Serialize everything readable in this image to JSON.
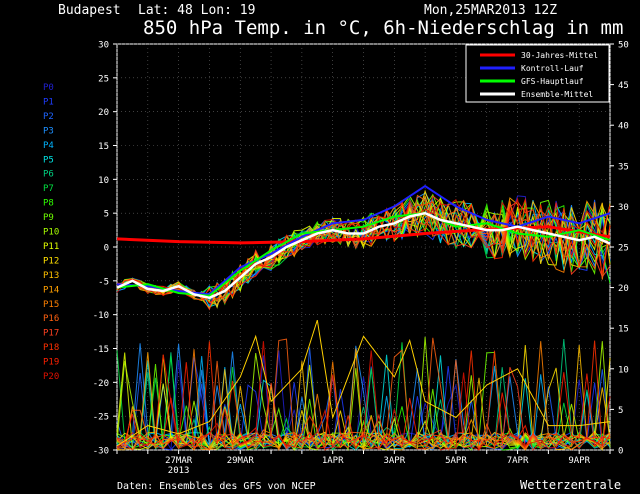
{
  "header": {
    "location": "Budapest",
    "coords": "Lat: 48 Lon: 19",
    "date": "Mon,25MAR2013 12Z",
    "title": "850 hPa Temp. in °C, 6h-Niederschlag in mm"
  },
  "footer": {
    "source": "Daten: Ensembles des GFS von NCEP",
    "brand": "Wetterzentrale"
  },
  "colors": {
    "climate_mean": "#ff0000",
    "control": "#2020ff",
    "gfs": "#00ff00",
    "ensemble_mean": "#ffffff",
    "members": [
      "#2020d0",
      "#1e3cff",
      "#1e64ff",
      "#1e90ff",
      "#00b4ff",
      "#00e0e0",
      "#00d080",
      "#00e040",
      "#30ff00",
      "#70ff00",
      "#a8ff00",
      "#e0ff00",
      "#ffe000",
      "#ffc000",
      "#ffa000",
      "#ff8000",
      "#ff6010",
      "#ff4020",
      "#ff3000",
      "#ff2000",
      "#e01000"
    ]
  },
  "chart_data": {
    "type": "line",
    "x_ticks": [
      "27MAR\n2013",
      "29MAR",
      "1APR",
      "3APR",
      "5APR",
      "7APR",
      "9APR"
    ],
    "x_tick_days": [
      2,
      4,
      7,
      9,
      11,
      13,
      15
    ],
    "x_range_days": [
      0,
      16
    ],
    "ylim_left": [
      -30,
      30
    ],
    "ylim_right": [
      0,
      50
    ],
    "y_ticks_left": [
      30,
      25,
      20,
      15,
      10,
      5,
      0,
      -5,
      -10,
      -15,
      -20,
      -25,
      -30
    ],
    "y_ticks_right": [
      50,
      45,
      40,
      35,
      30,
      25,
      20,
      15,
      10,
      5,
      0
    ],
    "legend": [
      "30-Jahres-Mittel",
      "Kontroll-Lauf",
      "GFS-Hauptlauf",
      "Ensemble-Mittel"
    ],
    "legend_position": "top-right",
    "members": [
      "P0",
      "P1",
      "P2",
      "P3",
      "P4",
      "P5",
      "P6",
      "P7",
      "P8",
      "P9",
      "P10",
      "P11",
      "P12",
      "P13",
      "P14",
      "P15",
      "P16",
      "P17",
      "P18",
      "P19",
      "P20"
    ],
    "series": [
      {
        "name": "30-Jahres-Mittel",
        "values": [
          [
            0,
            1.2
          ],
          [
            2,
            0.8
          ],
          [
            4,
            0.6
          ],
          [
            6,
            0.8
          ],
          [
            8,
            1.2
          ],
          [
            10,
            2.0
          ],
          [
            12,
            2.6
          ],
          [
            14,
            3.0
          ],
          [
            16,
            1.5
          ]
        ]
      },
      {
        "name": "Ensemble-Mittel",
        "values": [
          [
            0,
            -6.0
          ],
          [
            0.5,
            -5.0
          ],
          [
            1.0,
            -6.2
          ],
          [
            1.5,
            -6.5
          ],
          [
            2.0,
            -5.8
          ],
          [
            2.5,
            -7.0
          ],
          [
            3.0,
            -7.5
          ],
          [
            3.5,
            -6.5
          ],
          [
            4.0,
            -4.5
          ],
          [
            4.5,
            -2.5
          ],
          [
            5.0,
            -1.5
          ],
          [
            5.5,
            0.0
          ],
          [
            6.0,
            1.0
          ],
          [
            6.5,
            2.0
          ],
          [
            7.0,
            2.5
          ],
          [
            7.5,
            2.0
          ],
          [
            8.0,
            2.0
          ],
          [
            8.5,
            3.0
          ],
          [
            9.0,
            3.5
          ],
          [
            9.5,
            4.5
          ],
          [
            10.0,
            5.0
          ],
          [
            10.5,
            4.0
          ],
          [
            11.0,
            3.5
          ],
          [
            11.5,
            3.0
          ],
          [
            12.0,
            2.5
          ],
          [
            12.5,
            2.5
          ],
          [
            13.0,
            3.0
          ],
          [
            13.5,
            2.5
          ],
          [
            14.0,
            2.0
          ],
          [
            14.5,
            1.5
          ],
          [
            15.0,
            1.0
          ],
          [
            15.5,
            1.5
          ],
          [
            16.0,
            0.5
          ]
        ]
      },
      {
        "name": "Kontroll-Lauf",
        "values": [
          [
            0,
            -5.5
          ],
          [
            1,
            -5.8
          ],
          [
            2,
            -6.5
          ],
          [
            3,
            -7.0
          ],
          [
            4,
            -3.0
          ],
          [
            5,
            -1.0
          ],
          [
            6,
            1.5
          ],
          [
            7,
            3.5
          ],
          [
            8,
            4.0
          ],
          [
            9,
            6.0
          ],
          [
            10,
            9.0
          ],
          [
            11,
            6.0
          ],
          [
            12,
            4.0
          ],
          [
            13,
            3.0
          ],
          [
            14,
            4.5
          ],
          [
            15,
            3.5
          ],
          [
            16,
            5.0
          ]
        ]
      },
      {
        "name": "GFS-Hauptlauf",
        "values": [
          [
            0,
            -6.0
          ],
          [
            1,
            -5.5
          ],
          [
            2,
            -6.8
          ],
          [
            3,
            -7.2
          ],
          [
            4,
            -3.5
          ],
          [
            5,
            -0.5
          ],
          [
            6,
            2.0
          ],
          [
            7,
            2.5
          ],
          [
            8,
            3.0
          ],
          [
            9,
            4.5
          ],
          [
            10,
            5.0
          ],
          [
            11,
            3.0
          ],
          [
            12,
            3.5
          ],
          [
            13,
            2.0
          ],
          [
            14,
            1.5
          ],
          [
            15,
            2.5
          ],
          [
            16,
            1.0
          ]
        ]
      },
      {
        "name": "precipitation_max",
        "axis": "right",
        "values": [
          [
            0,
            0.5
          ],
          [
            1,
            3.0
          ],
          [
            2,
            2.0
          ],
          [
            3,
            3.5
          ],
          [
            4,
            9.0
          ],
          [
            4.5,
            14.0
          ],
          [
            5,
            6.0
          ],
          [
            6,
            10.0
          ],
          [
            6.5,
            16.0
          ],
          [
            7,
            4.0
          ],
          [
            8,
            14.0
          ],
          [
            9,
            9.0
          ],
          [
            9.5,
            13.5
          ],
          [
            10,
            6.0
          ],
          [
            11,
            4.0
          ],
          [
            12,
            8.0
          ],
          [
            13,
            10.0
          ],
          [
            14,
            3.0
          ],
          [
            15,
            3.0
          ],
          [
            16,
            3.5
          ]
        ]
      }
    ]
  }
}
